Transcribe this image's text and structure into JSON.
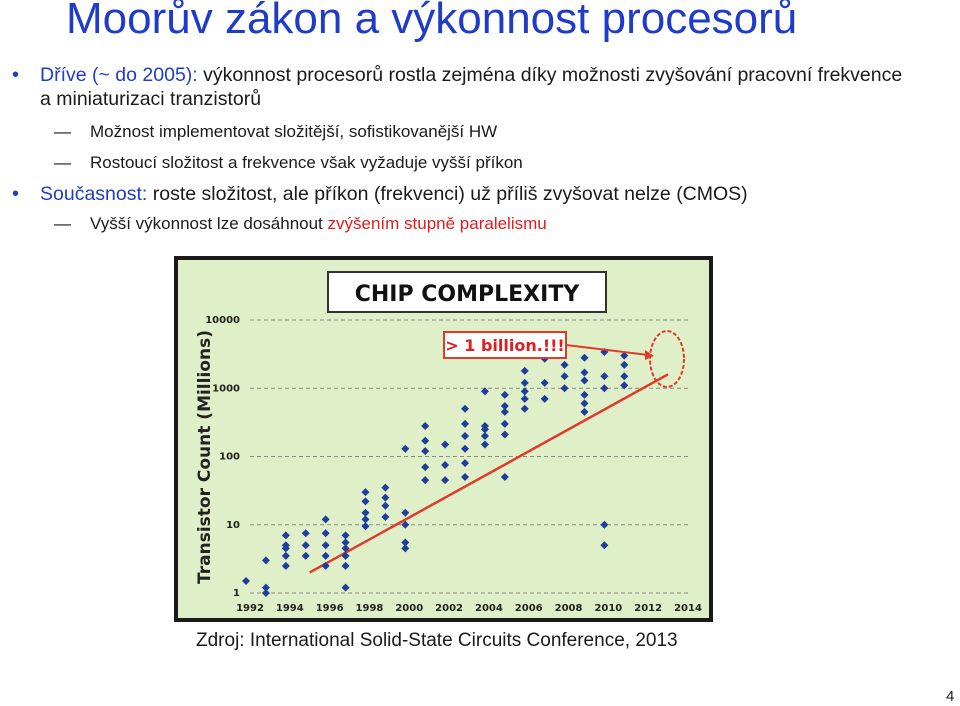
{
  "slide": {
    "title": "Moorův zákon a výkonnost procesorů",
    "bullet1": {
      "lead": "Dříve (~ do 2005):",
      "rest": " výkonnost procesorů rostla zejména díky možnosti zvyšování pracovní frekvence a miniaturizaci tranzistorů"
    },
    "sub1": "Možnost implementovat složitější, sofistikovanější HW",
    "sub2": "Rostoucí složitost a frekvence však vyžaduje vyšší příkon",
    "bullet2": {
      "lead": "Současnost:",
      "rest": " roste složitost, ale příkon (frekvenci) už příliš zvyšovat nelze (CMOS)"
    },
    "sub3": {
      "plain": "Vyšší výkonnost lze dosáhnout ",
      "highlight": "zvýšením stupně paralelismu"
    },
    "caption": "Zdroj: International Solid-State Circuits Conference, 2013",
    "page_number": "4"
  },
  "chart_data": {
    "type": "scatter",
    "title": "CHIP COMPLEXITY",
    "ylabel": "Transistor Count (Millions)",
    "xlabel": "",
    "y_scale": "log",
    "ylim": [
      1,
      10000
    ],
    "xlim": [
      1992,
      2014
    ],
    "x_ticks": [
      "1992",
      "1994",
      "1996",
      "1998",
      "2000",
      "2002",
      "2004",
      "2006",
      "2008",
      "2010",
      "2012",
      "2014"
    ],
    "y_ticks": [
      "1",
      "10",
      "100",
      "1000",
      "10000"
    ],
    "annotation": "> 1 billion.!!!",
    "grid": "horizontal dashed",
    "colors": {
      "points": "#1f3d9c",
      "trend": "#e03a2a",
      "background": "#dff0c8",
      "annotation": "#e01c1c"
    },
    "trend": {
      "x": [
        1995,
        2013
      ],
      "y": [
        2,
        1600
      ]
    },
    "points": [
      [
        1991.8,
        1.5
      ],
      [
        1992.8,
        1.2
      ],
      [
        1992.8,
        1.0
      ],
      [
        1992.8,
        3.0
      ],
      [
        1993.8,
        4.5
      ],
      [
        1993.8,
        5.0
      ],
      [
        1993.8,
        7.0
      ],
      [
        1993.8,
        3.5
      ],
      [
        1993.8,
        2.5
      ],
      [
        1994.8,
        7.5
      ],
      [
        1994.8,
        5.0
      ],
      [
        1994.8,
        3.5
      ],
      [
        1995.8,
        12
      ],
      [
        1995.8,
        7.5
      ],
      [
        1995.8,
        5.0
      ],
      [
        1995.8,
        3.5
      ],
      [
        1995.8,
        2.5
      ],
      [
        1996.8,
        5.5
      ],
      [
        1996.8,
        3.5
      ],
      [
        1996.8,
        2.5
      ],
      [
        1996.8,
        1.2
      ],
      [
        1996.8,
        7.0
      ],
      [
        1996.8,
        4.5
      ],
      [
        1997.8,
        30
      ],
      [
        1997.8,
        22
      ],
      [
        1997.8,
        15
      ],
      [
        1997.8,
        12
      ],
      [
        1997.8,
        9.5
      ],
      [
        1998.8,
        35
      ],
      [
        1998.8,
        25
      ],
      [
        1998.8,
        19
      ],
      [
        1998.8,
        13
      ],
      [
        1999.8,
        130
      ],
      [
        1999.8,
        15
      ],
      [
        1999.8,
        10
      ],
      [
        1999.8,
        5.5
      ],
      [
        1999.8,
        4.5
      ],
      [
        2000.8,
        280
      ],
      [
        2000.8,
        170
      ],
      [
        2000.8,
        120
      ],
      [
        2000.8,
        70
      ],
      [
        2000.8,
        45
      ],
      [
        2001.8,
        150
      ],
      [
        2001.8,
        75
      ],
      [
        2001.8,
        45
      ],
      [
        2002.8,
        500
      ],
      [
        2002.8,
        300
      ],
      [
        2002.8,
        200
      ],
      [
        2002.8,
        130
      ],
      [
        2002.8,
        80
      ],
      [
        2002.8,
        50
      ],
      [
        2003.8,
        900
      ],
      [
        2003.8,
        280
      ],
      [
        2003.8,
        250
      ],
      [
        2003.8,
        200
      ],
      [
        2003.8,
        150
      ],
      [
        2004.8,
        800
      ],
      [
        2004.8,
        550
      ],
      [
        2004.8,
        450
      ],
      [
        2004.8,
        300
      ],
      [
        2004.8,
        210
      ],
      [
        2004.8,
        50
      ],
      [
        2005.8,
        1800
      ],
      [
        2005.8,
        1200
      ],
      [
        2005.8,
        900
      ],
      [
        2005.8,
        700
      ],
      [
        2005.8,
        500
      ],
      [
        2006.8,
        2700
      ],
      [
        2006.8,
        1200
      ],
      [
        2006.8,
        700
      ],
      [
        2007.8,
        2200
      ],
      [
        2007.8,
        1500
      ],
      [
        2007.8,
        1000
      ],
      [
        2008.8,
        2800
      ],
      [
        2008.8,
        1700
      ],
      [
        2008.8,
        1300
      ],
      [
        2008.8,
        800
      ],
      [
        2008.8,
        600
      ],
      [
        2008.8,
        450
      ],
      [
        2009.8,
        3400
      ],
      [
        2009.8,
        1500
      ],
      [
        2009.8,
        10
      ],
      [
        2009.8,
        5.0
      ],
      [
        2009.8,
        1000
      ],
      [
        2010.8,
        3000
      ],
      [
        2010.8,
        2200
      ],
      [
        2010.8,
        1500
      ],
      [
        2010.8,
        1100
      ]
    ]
  }
}
